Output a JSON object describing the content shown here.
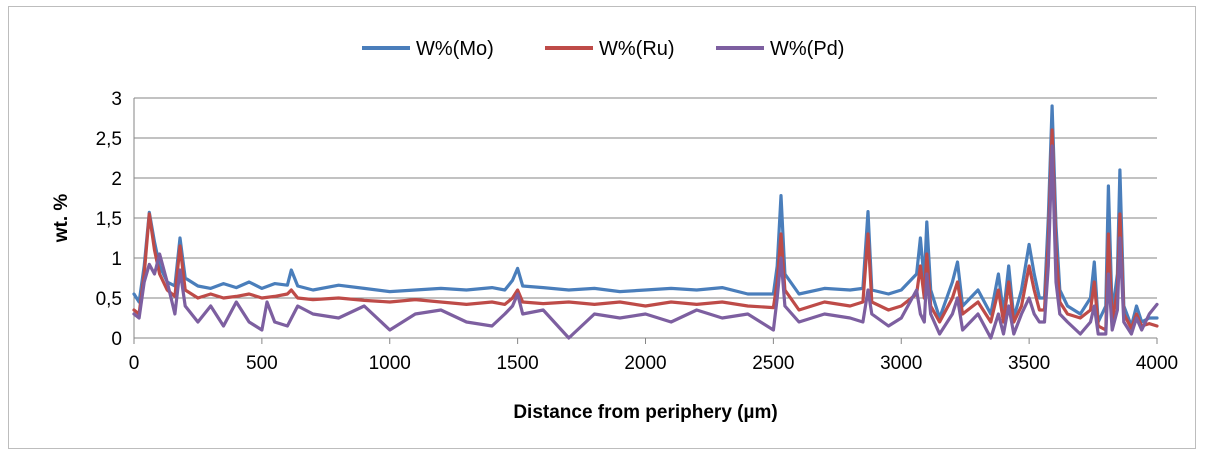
{
  "chart_data": {
    "type": "line",
    "title": "",
    "xlabel": "Distance from periphery (µm)",
    "ylabel": "wt. %",
    "xlim": [
      0,
      4000
    ],
    "ylim": [
      0,
      3
    ],
    "x_ticks": [
      0,
      500,
      1000,
      1500,
      2000,
      2500,
      3000,
      3500,
      4000
    ],
    "y_ticks": [
      0,
      0.5,
      1,
      1.5,
      2,
      2.5,
      3
    ],
    "y_tick_labels": [
      "0",
      "0,5",
      "1",
      "1,5",
      "2",
      "2,5",
      "3"
    ],
    "grid": "horizontal",
    "legend_position": "top",
    "series": [
      {
        "name": "W%(Mo)",
        "color": "#4a7ebb",
        "points": [
          [
            0,
            0.55
          ],
          [
            20,
            0.45
          ],
          [
            40,
            0.9
          ],
          [
            60,
            1.57
          ],
          [
            80,
            1.2
          ],
          [
            100,
            0.9
          ],
          [
            130,
            0.7
          ],
          [
            160,
            0.65
          ],
          [
            180,
            1.25
          ],
          [
            200,
            0.75
          ],
          [
            250,
            0.65
          ],
          [
            300,
            0.62
          ],
          [
            350,
            0.68
          ],
          [
            400,
            0.63
          ],
          [
            450,
            0.7
          ],
          [
            500,
            0.62
          ],
          [
            550,
            0.68
          ],
          [
            600,
            0.66
          ],
          [
            615,
            0.85
          ],
          [
            640,
            0.65
          ],
          [
            700,
            0.6
          ],
          [
            800,
            0.66
          ],
          [
            900,
            0.62
          ],
          [
            1000,
            0.58
          ],
          [
            1100,
            0.6
          ],
          [
            1200,
            0.62
          ],
          [
            1300,
            0.6
          ],
          [
            1400,
            0.63
          ],
          [
            1450,
            0.6
          ],
          [
            1480,
            0.72
          ],
          [
            1500,
            0.87
          ],
          [
            1520,
            0.65
          ],
          [
            1600,
            0.63
          ],
          [
            1700,
            0.6
          ],
          [
            1800,
            0.62
          ],
          [
            1900,
            0.58
          ],
          [
            2000,
            0.6
          ],
          [
            2100,
            0.62
          ],
          [
            2200,
            0.6
          ],
          [
            2300,
            0.63
          ],
          [
            2400,
            0.55
          ],
          [
            2500,
            0.55
          ],
          [
            2515,
            0.9
          ],
          [
            2530,
            1.78
          ],
          [
            2545,
            0.8
          ],
          [
            2600,
            0.55
          ],
          [
            2700,
            0.62
          ],
          [
            2800,
            0.6
          ],
          [
            2850,
            0.62
          ],
          [
            2870,
            1.58
          ],
          [
            2885,
            0.6
          ],
          [
            2950,
            0.55
          ],
          [
            3000,
            0.6
          ],
          [
            3060,
            0.8
          ],
          [
            3075,
            1.25
          ],
          [
            3090,
            0.7
          ],
          [
            3100,
            1.45
          ],
          [
            3115,
            0.6
          ],
          [
            3150,
            0.25
          ],
          [
            3200,
            0.7
          ],
          [
            3220,
            0.95
          ],
          [
            3240,
            0.4
          ],
          [
            3300,
            0.6
          ],
          [
            3350,
            0.3
          ],
          [
            3380,
            0.8
          ],
          [
            3400,
            0.3
          ],
          [
            3420,
            0.9
          ],
          [
            3440,
            0.25
          ],
          [
            3470,
            0.6
          ],
          [
            3500,
            1.17
          ],
          [
            3520,
            0.8
          ],
          [
            3540,
            0.5
          ],
          [
            3560,
            0.5
          ],
          [
            3575,
            1.5
          ],
          [
            3590,
            2.9
          ],
          [
            3605,
            1.4
          ],
          [
            3620,
            0.6
          ],
          [
            3650,
            0.4
          ],
          [
            3700,
            0.3
          ],
          [
            3740,
            0.5
          ],
          [
            3755,
            0.95
          ],
          [
            3770,
            0.2
          ],
          [
            3800,
            0.4
          ],
          [
            3810,
            1.9
          ],
          [
            3825,
            0.3
          ],
          [
            3845,
            0.8
          ],
          [
            3855,
            2.1
          ],
          [
            3870,
            0.4
          ],
          [
            3900,
            0.15
          ],
          [
            3920,
            0.4
          ],
          [
            3940,
            0.2
          ],
          [
            3970,
            0.25
          ],
          [
            4000,
            0.25
          ]
        ]
      },
      {
        "name": "W%(Ru)",
        "color": "#be4b48",
        "points": [
          [
            0,
            0.35
          ],
          [
            20,
            0.3
          ],
          [
            40,
            0.8
          ],
          [
            60,
            1.55
          ],
          [
            80,
            1.1
          ],
          [
            100,
            0.8
          ],
          [
            130,
            0.6
          ],
          [
            160,
            0.52
          ],
          [
            180,
            1.15
          ],
          [
            200,
            0.6
          ],
          [
            250,
            0.5
          ],
          [
            300,
            0.55
          ],
          [
            350,
            0.5
          ],
          [
            400,
            0.52
          ],
          [
            450,
            0.55
          ],
          [
            500,
            0.5
          ],
          [
            550,
            0.52
          ],
          [
            600,
            0.55
          ],
          [
            615,
            0.6
          ],
          [
            640,
            0.5
          ],
          [
            700,
            0.48
          ],
          [
            800,
            0.5
          ],
          [
            900,
            0.47
          ],
          [
            1000,
            0.45
          ],
          [
            1100,
            0.48
          ],
          [
            1200,
            0.45
          ],
          [
            1300,
            0.42
          ],
          [
            1400,
            0.45
          ],
          [
            1450,
            0.42
          ],
          [
            1480,
            0.5
          ],
          [
            1500,
            0.6
          ],
          [
            1520,
            0.45
          ],
          [
            1600,
            0.43
          ],
          [
            1700,
            0.45
          ],
          [
            1800,
            0.42
          ],
          [
            1900,
            0.45
          ],
          [
            2000,
            0.4
          ],
          [
            2100,
            0.45
          ],
          [
            2200,
            0.42
          ],
          [
            2300,
            0.45
          ],
          [
            2400,
            0.4
          ],
          [
            2500,
            0.38
          ],
          [
            2515,
            0.7
          ],
          [
            2530,
            1.3
          ],
          [
            2545,
            0.6
          ],
          [
            2600,
            0.35
          ],
          [
            2700,
            0.45
          ],
          [
            2800,
            0.4
          ],
          [
            2850,
            0.45
          ],
          [
            2870,
            1.3
          ],
          [
            2885,
            0.45
          ],
          [
            2950,
            0.35
          ],
          [
            3000,
            0.4
          ],
          [
            3060,
            0.55
          ],
          [
            3075,
            0.9
          ],
          [
            3090,
            0.5
          ],
          [
            3100,
            1.05
          ],
          [
            3115,
            0.4
          ],
          [
            3150,
            0.2
          ],
          [
            3200,
            0.5
          ],
          [
            3220,
            0.7
          ],
          [
            3240,
            0.3
          ],
          [
            3300,
            0.45
          ],
          [
            3350,
            0.2
          ],
          [
            3380,
            0.6
          ],
          [
            3400,
            0.2
          ],
          [
            3420,
            0.7
          ],
          [
            3440,
            0.2
          ],
          [
            3470,
            0.4
          ],
          [
            3500,
            0.9
          ],
          [
            3520,
            0.6
          ],
          [
            3540,
            0.35
          ],
          [
            3560,
            0.35
          ],
          [
            3575,
            1.2
          ],
          [
            3590,
            2.6
          ],
          [
            3605,
            1.1
          ],
          [
            3620,
            0.45
          ],
          [
            3650,
            0.3
          ],
          [
            3700,
            0.25
          ],
          [
            3740,
            0.35
          ],
          [
            3755,
            0.7
          ],
          [
            3770,
            0.15
          ],
          [
            3800,
            0.1
          ],
          [
            3810,
            1.3
          ],
          [
            3825,
            0.2
          ],
          [
            3845,
            0.6
          ],
          [
            3855,
            1.55
          ],
          [
            3870,
            0.3
          ],
          [
            3900,
            0.12
          ],
          [
            3920,
            0.3
          ],
          [
            3940,
            0.15
          ],
          [
            3970,
            0.18
          ],
          [
            4000,
            0.15
          ]
        ]
      },
      {
        "name": "W%(Pd)",
        "color": "#7d5fa0",
        "points": [
          [
            0,
            0.3
          ],
          [
            20,
            0.25
          ],
          [
            40,
            0.7
          ],
          [
            60,
            0.92
          ],
          [
            80,
            0.8
          ],
          [
            100,
            1.05
          ],
          [
            130,
            0.7
          ],
          [
            160,
            0.3
          ],
          [
            180,
            0.85
          ],
          [
            200,
            0.4
          ],
          [
            250,
            0.2
          ],
          [
            300,
            0.4
          ],
          [
            350,
            0.15
          ],
          [
            400,
            0.45
          ],
          [
            450,
            0.2
          ],
          [
            500,
            0.1
          ],
          [
            520,
            0.45
          ],
          [
            550,
            0.2
          ],
          [
            600,
            0.15
          ],
          [
            640,
            0.4
          ],
          [
            700,
            0.3
          ],
          [
            800,
            0.25
          ],
          [
            900,
            0.4
          ],
          [
            1000,
            0.1
          ],
          [
            1100,
            0.3
          ],
          [
            1200,
            0.35
          ],
          [
            1300,
            0.2
          ],
          [
            1400,
            0.15
          ],
          [
            1450,
            0.3
          ],
          [
            1480,
            0.4
          ],
          [
            1500,
            0.55
          ],
          [
            1520,
            0.3
          ],
          [
            1600,
            0.35
          ],
          [
            1700,
            0.0
          ],
          [
            1800,
            0.3
          ],
          [
            1900,
            0.25
          ],
          [
            2000,
            0.3
          ],
          [
            2100,
            0.2
          ],
          [
            2200,
            0.35
          ],
          [
            2300,
            0.25
          ],
          [
            2400,
            0.3
          ],
          [
            2500,
            0.1
          ],
          [
            2515,
            0.5
          ],
          [
            2530,
            1.0
          ],
          [
            2545,
            0.4
          ],
          [
            2600,
            0.2
          ],
          [
            2700,
            0.3
          ],
          [
            2800,
            0.25
          ],
          [
            2850,
            0.2
          ],
          [
            2870,
            0.6
          ],
          [
            2885,
            0.3
          ],
          [
            2950,
            0.15
          ],
          [
            3000,
            0.25
          ],
          [
            3060,
            0.6
          ],
          [
            3075,
            0.3
          ],
          [
            3090,
            0.2
          ],
          [
            3100,
            0.8
          ],
          [
            3115,
            0.3
          ],
          [
            3150,
            0.05
          ],
          [
            3200,
            0.3
          ],
          [
            3220,
            0.5
          ],
          [
            3240,
            0.1
          ],
          [
            3300,
            0.3
          ],
          [
            3350,
            0.0
          ],
          [
            3380,
            0.3
          ],
          [
            3400,
            0.05
          ],
          [
            3420,
            0.4
          ],
          [
            3440,
            0.05
          ],
          [
            3470,
            0.3
          ],
          [
            3500,
            0.5
          ],
          [
            3520,
            0.3
          ],
          [
            3540,
            0.2
          ],
          [
            3560,
            0.2
          ],
          [
            3575,
            0.9
          ],
          [
            3590,
            2.4
          ],
          [
            3605,
            0.7
          ],
          [
            3620,
            0.3
          ],
          [
            3650,
            0.2
          ],
          [
            3700,
            0.05
          ],
          [
            3740,
            0.2
          ],
          [
            3755,
            0.4
          ],
          [
            3770,
            0.05
          ],
          [
            3800,
            0.05
          ],
          [
            3810,
            0.8
          ],
          [
            3825,
            0.1
          ],
          [
            3845,
            0.35
          ],
          [
            3855,
            1.25
          ],
          [
            3870,
            0.2
          ],
          [
            3900,
            0.05
          ],
          [
            3920,
            0.25
          ],
          [
            3940,
            0.1
          ],
          [
            3970,
            0.3
          ],
          [
            4000,
            0.42
          ]
        ]
      }
    ]
  }
}
